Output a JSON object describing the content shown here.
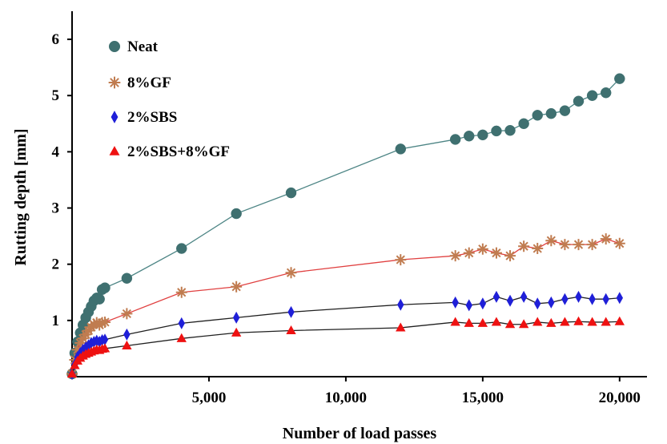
{
  "chart_data": {
    "type": "line",
    "xlabel": "Number of load passes",
    "ylabel": "Rutting depth [mm]",
    "xlim": [
      0,
      21000
    ],
    "ylim": [
      0,
      6.5
    ],
    "xticks": [
      5000,
      10000,
      15000,
      20000
    ],
    "xtick_labels": [
      "5,000",
      "10,000",
      "15,000",
      "20,000"
    ],
    "yticks": [
      1,
      2,
      3,
      4,
      5,
      6
    ],
    "ytick_labels": [
      "1",
      "2",
      "3",
      "4",
      "5",
      "6"
    ],
    "grid": false,
    "legend_position": "top-left",
    "series": [
      {
        "name": "Neat",
        "marker": "circle",
        "color": "#3f7070",
        "line_color": "#4d8585",
        "x": [
          0,
          100,
          200,
          300,
          400,
          500,
          600,
          700,
          800,
          900,
          1000,
          1100,
          1200,
          2000,
          4000,
          6000,
          8000,
          12000,
          14000,
          14500,
          15000,
          15500,
          16000,
          16500,
          17000,
          17500,
          18000,
          18500,
          19000,
          19500,
          20000
        ],
        "y": [
          0.05,
          0.42,
          0.62,
          0.78,
          0.92,
          1.05,
          1.15,
          1.25,
          1.35,
          1.4,
          1.38,
          1.55,
          1.58,
          1.75,
          2.28,
          2.9,
          3.27,
          4.05,
          4.22,
          4.28,
          4.3,
          4.37,
          4.38,
          4.5,
          4.65,
          4.68,
          4.73,
          4.9,
          5.0,
          5.05,
          5.3
        ]
      },
      {
        "name": "8%GF",
        "marker": "asterisk",
        "color": "#c07c50",
        "line_color": "#e04040",
        "x": [
          0,
          100,
          200,
          300,
          400,
          500,
          600,
          700,
          800,
          900,
          1000,
          1100,
          1200,
          2000,
          4000,
          6000,
          8000,
          12000,
          14000,
          14500,
          15000,
          15500,
          16000,
          16500,
          17000,
          17500,
          18000,
          18500,
          19000,
          19500,
          20000
        ],
        "y": [
          0.05,
          0.3,
          0.48,
          0.6,
          0.68,
          0.75,
          0.82,
          0.88,
          0.93,
          0.96,
          0.92,
          0.96,
          0.97,
          1.12,
          1.5,
          1.6,
          1.85,
          2.08,
          2.15,
          2.2,
          2.27,
          2.2,
          2.15,
          2.32,
          2.28,
          2.42,
          2.35,
          2.35,
          2.35,
          2.45,
          2.37
        ]
      },
      {
        "name": "2%SBS",
        "marker": "diamond",
        "color": "#1f1fd8",
        "line_color": "#202020",
        "x": [
          0,
          100,
          200,
          300,
          400,
          500,
          600,
          700,
          800,
          900,
          1000,
          1100,
          1200,
          2000,
          4000,
          6000,
          8000,
          12000,
          14000,
          14500,
          15000,
          15500,
          16000,
          16500,
          17000,
          17500,
          18000,
          18500,
          19000,
          19500,
          20000
        ],
        "y": [
          0.05,
          0.22,
          0.35,
          0.42,
          0.48,
          0.52,
          0.56,
          0.6,
          0.62,
          0.64,
          0.62,
          0.65,
          0.66,
          0.75,
          0.95,
          1.05,
          1.15,
          1.28,
          1.32,
          1.27,
          1.3,
          1.42,
          1.35,
          1.42,
          1.3,
          1.32,
          1.38,
          1.42,
          1.38,
          1.38,
          1.4
        ]
      },
      {
        "name": "2%SBS+8%GF",
        "marker": "triangle",
        "color": "#ee1111",
        "line_color": "#202020",
        "x": [
          0,
          100,
          200,
          300,
          400,
          500,
          600,
          700,
          800,
          900,
          1000,
          1100,
          1200,
          2000,
          4000,
          6000,
          8000,
          12000,
          14000,
          14500,
          15000,
          15500,
          16000,
          16500,
          17000,
          17500,
          18000,
          18500,
          19000,
          19500,
          20000
        ],
        "y": [
          0.05,
          0.2,
          0.28,
          0.33,
          0.37,
          0.4,
          0.42,
          0.44,
          0.46,
          0.48,
          0.47,
          0.49,
          0.5,
          0.55,
          0.68,
          0.78,
          0.82,
          0.87,
          0.97,
          0.95,
          0.95,
          0.97,
          0.93,
          0.93,
          0.97,
          0.95,
          0.97,
          0.98,
          0.97,
          0.97,
          0.98
        ]
      }
    ]
  }
}
